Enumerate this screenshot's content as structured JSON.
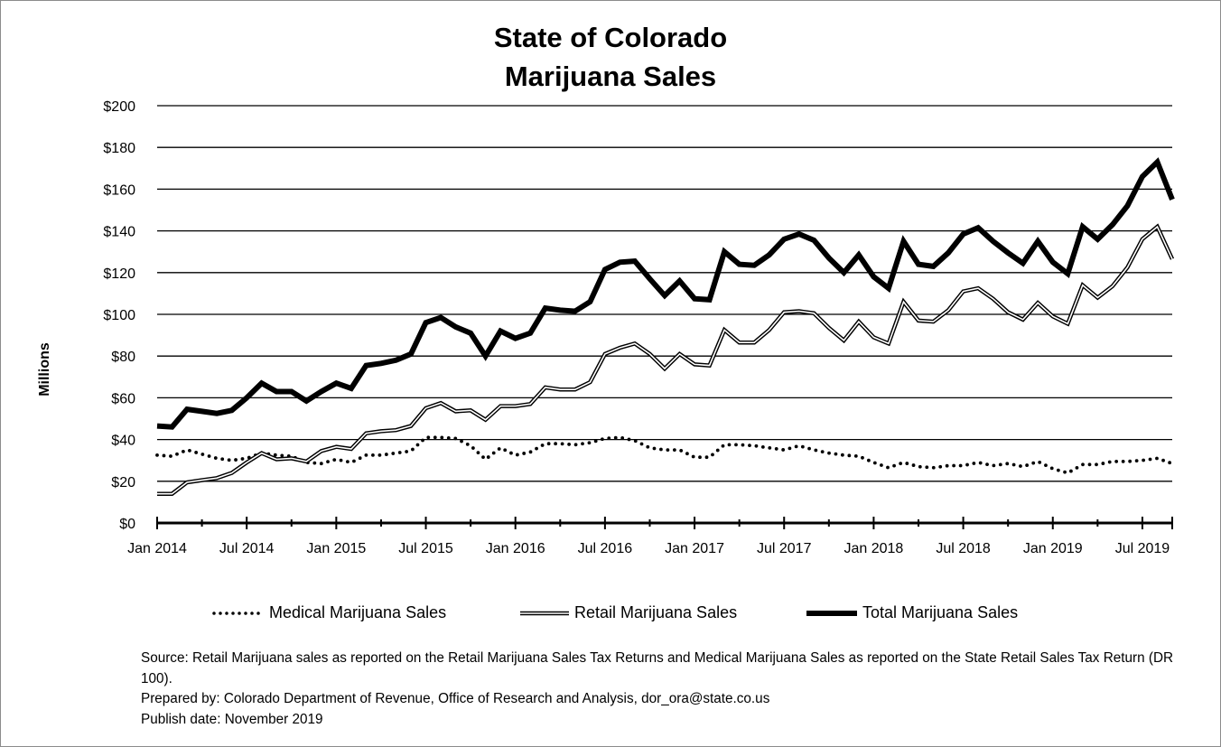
{
  "chart_data": {
    "type": "line",
    "title": [
      "State of Colorado",
      "Marijuana Sales"
    ],
    "ylabel": "Millions",
    "xlabel": "",
    "ylim": [
      0,
      200
    ],
    "y_ticks": [
      "$0",
      "$20",
      "$40",
      "$60",
      "$80",
      "$100",
      "$120",
      "$140",
      "$160",
      "$180",
      "$200"
    ],
    "x_tick_labels": [
      "Jan 2014",
      "Jul 2014",
      "Jan 2015",
      "Jul 2015",
      "Jan 2016",
      "Jul 2016",
      "Jan 2017",
      "Jul 2017",
      "Jan 2018",
      "Jul 2018",
      "Jan 2019",
      "Jul 2019"
    ],
    "x_range": [
      "Jan 2014",
      "Sep 2019"
    ],
    "x_interval": "monthly",
    "grid": "horizontal",
    "legend_position": "bottom",
    "series": [
      {
        "name": "Medical Marijuana Sales",
        "style": "dotted",
        "values": [
          32.5,
          32,
          35,
          33,
          31,
          30,
          31,
          33.5,
          32.5,
          32,
          29,
          28.5,
          30.5,
          29,
          32.5,
          32.5,
          33.5,
          34.5,
          41,
          41,
          40.5,
          37,
          30.5,
          36,
          32.5,
          34,
          38,
          38,
          37.5,
          38.5,
          40.5,
          41,
          39.5,
          36,
          35,
          35,
          31.5,
          31.5,
          37.5,
          37.5,
          37,
          36,
          35,
          37,
          35,
          33.5,
          32.5,
          32,
          29,
          26.5,
          29,
          27,
          26.5,
          27.5,
          27.5,
          29,
          27.5,
          28.5,
          27,
          29.5,
          26,
          24,
          28,
          28,
          29.5,
          29.5,
          30,
          31,
          28.5
        ]
      },
      {
        "name": "Retail Marijuana Sales",
        "style": "double",
        "values": [
          14,
          14,
          19.5,
          20.5,
          21.5,
          24,
          29,
          33.5,
          30.5,
          31,
          29.5,
          34.5,
          36.5,
          35.5,
          43,
          44,
          44.5,
          46.5,
          55,
          57.5,
          53.5,
          54,
          49.5,
          56,
          56,
          57,
          65,
          64,
          64,
          67.5,
          81,
          84,
          86,
          81,
          74,
          81,
          76,
          75.5,
          92.5,
          86.5,
          86.5,
          92.5,
          101,
          101.5,
          100.5,
          93.5,
          87.5,
          96.5,
          89,
          86,
          106,
          97,
          96.5,
          102,
          111,
          112.5,
          107.5,
          101,
          97.5,
          105.5,
          99,
          95.5,
          114,
          108,
          113.5,
          122.5,
          136,
          142,
          126.5
        ]
      },
      {
        "name": "Total Marijuana Sales",
        "style": "thick",
        "values": [
          46.5,
          46,
          54.5,
          53.5,
          52.5,
          54,
          60,
          67,
          63,
          63,
          58.5,
          63,
          67,
          64.5,
          75.5,
          76.5,
          78,
          81,
          96,
          98.5,
          94,
          91,
          80,
          92,
          88.5,
          91,
          103,
          102,
          101.5,
          106,
          121.5,
          125,
          125.5,
          117,
          109,
          116,
          107.5,
          107,
          130,
          124,
          123.5,
          128.5,
          136,
          138.5,
          135.5,
          127,
          120,
          128.5,
          118,
          112.5,
          135,
          124,
          123,
          129.5,
          138.5,
          141.5,
          135,
          129.5,
          124.5,
          135,
          125,
          119.5,
          142,
          136,
          143,
          152,
          166,
          173,
          155
        ]
      }
    ]
  },
  "source": {
    "line1": "Source: Retail  Marijuana sales as reported on the Retail Marijuana Sales Tax Returns and Medical Marijuana Sales as reported on the State Retail Sales Tax Return (DR 100).",
    "line2": "Prepared by: Colorado Department of Revenue, Office of Research and Analysis, dor_ora@state.co.us",
    "line3": "Publish date:  November  2019"
  }
}
